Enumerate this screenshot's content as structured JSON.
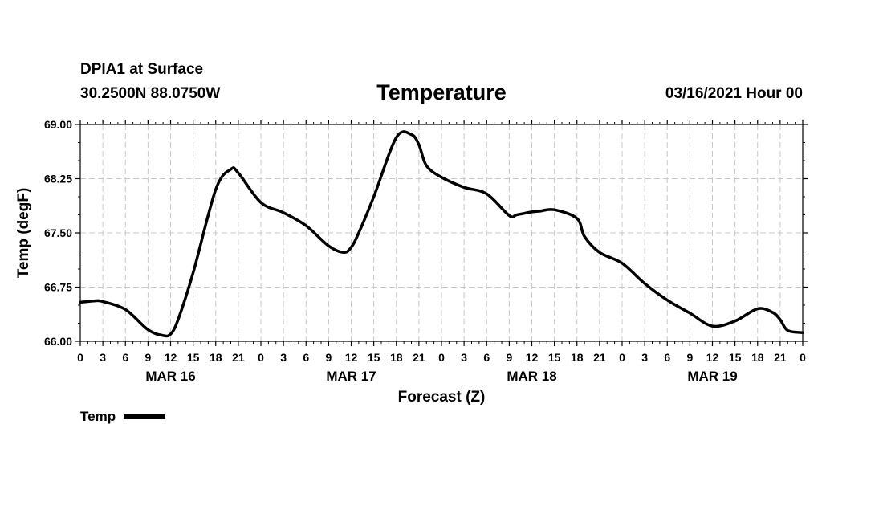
{
  "header": {
    "station": "DPIA1 at Surface",
    "coords": "30.2500N 88.0750W",
    "title": "Temperature",
    "datetime": "03/16/2021 Hour 00"
  },
  "legend": {
    "label": "Temp"
  },
  "colors": {
    "line": "#000000",
    "grid": "#c8c8c8"
  },
  "chart_data": {
    "type": "line",
    "title": "Temperature",
    "xlabel": "Forecast (Z)",
    "ylabel": "Temp (degF)",
    "xlim": [
      0,
      96
    ],
    "ylim": [
      66.0,
      69.0
    ],
    "y_ticks": [
      "66.00",
      "66.75",
      "67.50",
      "68.25",
      "69.00"
    ],
    "x_tick_hours": [
      0,
      3,
      6,
      9,
      12,
      15,
      18,
      21,
      24,
      27,
      30,
      33,
      36,
      39,
      42,
      45,
      48,
      51,
      54,
      57,
      60,
      63,
      66,
      69,
      72,
      75,
      78,
      81,
      84,
      87,
      90,
      93,
      96
    ],
    "x_tick_labels": [
      "0",
      "3",
      "6",
      "9",
      "12",
      "15",
      "18",
      "21",
      "0",
      "3",
      "6",
      "9",
      "12",
      "15",
      "18",
      "21",
      "0",
      "3",
      "6",
      "9",
      "12",
      "15",
      "18",
      "21",
      "0",
      "3",
      "6",
      "9",
      "12",
      "15",
      "18",
      "21",
      "0"
    ],
    "day_labels": [
      {
        "label": "MAR 16",
        "hour": 12
      },
      {
        "label": "MAR 17",
        "hour": 36
      },
      {
        "label": "MAR 18",
        "hour": 60
      },
      {
        "label": "MAR 19",
        "hour": 84
      }
    ],
    "series": [
      {
        "name": "Temp",
        "x": [
          0,
          2,
          3,
          6,
          9,
          11,
          12,
          13,
          15,
          18,
          20,
          21,
          24,
          27,
          30,
          33,
          35,
          36,
          37,
          39,
          42,
          44,
          45,
          46,
          48,
          51,
          54,
          57,
          58,
          60,
          61,
          63,
          66,
          67,
          69,
          72,
          75,
          78,
          81,
          84,
          87,
          90,
          92,
          93,
          94,
          96
        ],
        "values": [
          66.54,
          66.56,
          66.55,
          66.44,
          66.16,
          66.08,
          66.1,
          66.3,
          66.95,
          68.1,
          68.38,
          68.33,
          67.92,
          67.78,
          67.6,
          67.32,
          67.23,
          67.3,
          67.5,
          68.0,
          68.82,
          68.86,
          68.72,
          68.43,
          68.27,
          68.13,
          68.04,
          67.74,
          67.75,
          67.79,
          67.8,
          67.82,
          67.7,
          67.45,
          67.23,
          67.08,
          66.8,
          66.57,
          66.39,
          66.21,
          66.28,
          66.45,
          66.4,
          66.3,
          66.15,
          66.12
        ]
      }
    ]
  }
}
